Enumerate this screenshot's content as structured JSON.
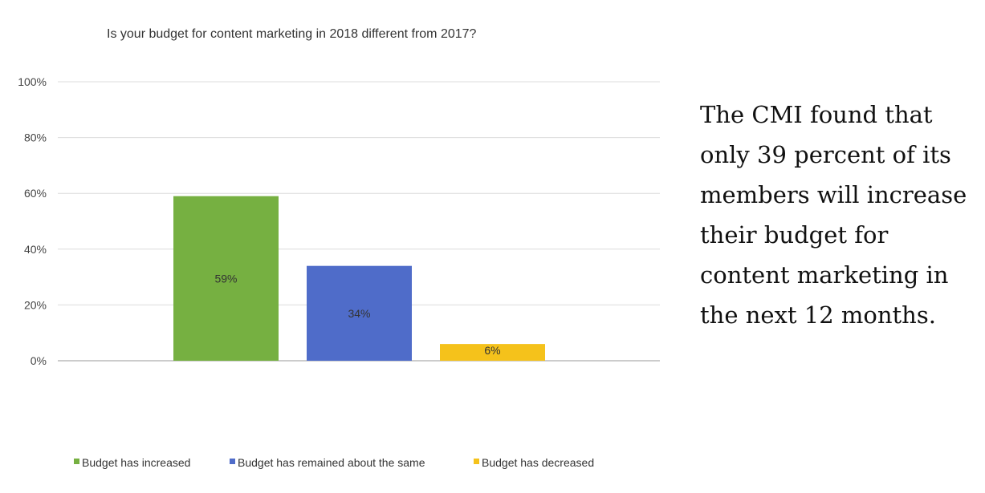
{
  "chart_data": {
    "type": "bar",
    "title": "Is your budget for content marketing in 2018 different from 2017?",
    "categories": [
      "Budget has increased",
      "Budget has remained about the same",
      "Budget has decreased"
    ],
    "values": [
      59,
      34,
      6
    ],
    "data_labels": [
      "59%",
      "34%",
      "6%"
    ],
    "colors": [
      "#76b041",
      "#4f6cc9",
      "#f5c21b"
    ],
    "ylim": [
      0,
      100
    ],
    "y_ticks": [
      0,
      20,
      40,
      60,
      80,
      100
    ],
    "y_tick_labels": [
      "0%",
      "20%",
      "40%",
      "60%",
      "80%",
      "100%"
    ],
    "xlabel": "",
    "ylabel": "",
    "grid": true,
    "legend": {
      "placement": "bottom",
      "entries": [
        "Budget has increased",
        "Budget has remained about the same",
        "Budget has decreased"
      ]
    }
  },
  "side_text": "The CMI found that only 39 percent of its members will increase their budget for content marketing in the next 12 months."
}
